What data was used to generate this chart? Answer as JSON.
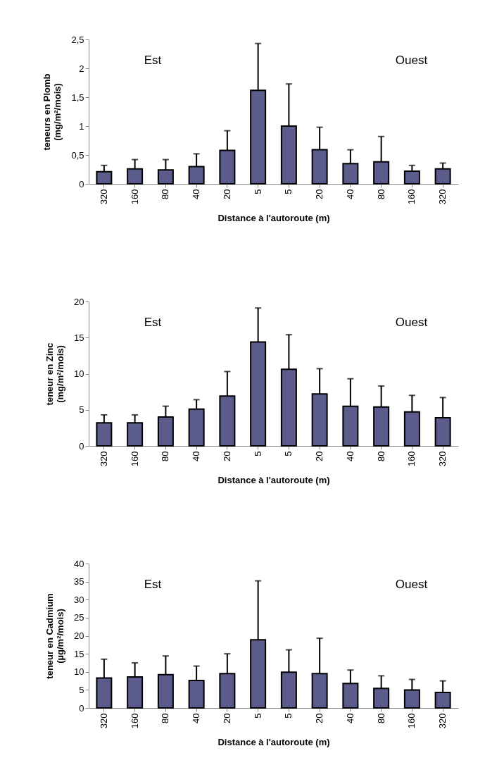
{
  "chart_data": [
    {
      "type": "bar",
      "xlabel": "Distance à l'autoroute (m)",
      "ylabel": "teneurs en Plomb\n(mg/m²/mois)",
      "categories": [
        "320",
        "160",
        "80",
        "40",
        "20",
        "5",
        "5",
        "20",
        "40",
        "80",
        "160",
        "320"
      ],
      "annotations": [
        "Est",
        "Ouest"
      ],
      "series": [
        {
          "color": "#5c5c8c",
          "values": [
            0.21,
            0.26,
            0.24,
            0.3,
            0.58,
            1.62,
            1.0,
            0.59,
            0.35,
            0.38,
            0.22,
            0.26
          ],
          "errors": [
            [
              0.21,
              0.32
            ],
            [
              0.26,
              0.42
            ],
            [
              0.24,
              0.42
            ],
            [
              0.3,
              0.52
            ],
            [
              0.58,
              0.92
            ],
            [
              1.62,
              2.43
            ],
            [
              1.0,
              1.73
            ],
            [
              0.59,
              0.98
            ],
            [
              0.35,
              0.59
            ],
            [
              0.38,
              0.82
            ],
            [
              0.22,
              0.32
            ],
            [
              0.26,
              0.36
            ]
          ]
        }
      ],
      "ylim": [
        0,
        2.5
      ],
      "yticks": [
        0,
        {
          "value": 0.5,
          "label": "0,5"
        },
        1,
        {
          "value": 1.5,
          "label": "1,5"
        },
        2,
        {
          "value": 2.5,
          "label": "2,5"
        }
      ]
    },
    {
      "type": "bar",
      "xlabel": "Distance à l'autoroute (m)",
      "ylabel": "teneur en Zinc\n(mg/m²/mois)",
      "categories": [
        "320",
        "160",
        "80",
        "40",
        "20",
        "5",
        "5",
        "20",
        "40",
        "80",
        "160",
        "320"
      ],
      "annotations": [
        "Est",
        "Ouest"
      ],
      "series": [
        {
          "color": "#5c5c8c",
          "values": [
            3.2,
            3.2,
            4.0,
            5.1,
            6.9,
            14.4,
            10.6,
            7.2,
            5.5,
            5.4,
            4.7,
            3.9
          ],
          "errors": [
            [
              3.2,
              4.3
            ],
            [
              3.2,
              4.3
            ],
            [
              4.0,
              5.5
            ],
            [
              5.1,
              6.4
            ],
            [
              6.9,
              10.3
            ],
            [
              14.4,
              19.1
            ],
            [
              10.6,
              15.4
            ],
            [
              7.2,
              10.7
            ],
            [
              5.5,
              9.3
            ],
            [
              5.4,
              8.3
            ],
            [
              4.7,
              7.0
            ],
            [
              3.9,
              6.7
            ]
          ]
        }
      ],
      "ylim": [
        0,
        20
      ],
      "yticks": [
        0,
        5,
        10,
        15,
        20
      ]
    },
    {
      "type": "bar",
      "xlabel": "Distance à l'autoroute (m)",
      "ylabel": "teneur en Cadmium\n(µg/m²/mois)",
      "categories": [
        "320",
        "160",
        "80",
        "40",
        "20",
        "5",
        "5",
        "20",
        "40",
        "80",
        "160",
        "320"
      ],
      "annotations": [
        "Est",
        "Ouest"
      ],
      "series": [
        {
          "color": "#5c5c8c",
          "values": [
            8.3,
            8.6,
            9.2,
            7.6,
            9.5,
            18.9,
            9.9,
            9.5,
            6.8,
            5.4,
            5.0,
            4.3
          ],
          "errors": [
            [
              8.3,
              13.5
            ],
            [
              8.6,
              12.5
            ],
            [
              9.2,
              14.4
            ],
            [
              7.6,
              11.6
            ],
            [
              9.5,
              15.0
            ],
            [
              18.9,
              35.2
            ],
            [
              9.9,
              16.1
            ],
            [
              9.5,
              19.3
            ],
            [
              6.8,
              10.5
            ],
            [
              5.4,
              8.9
            ],
            [
              5.0,
              7.9
            ],
            [
              4.3,
              7.5
            ]
          ]
        }
      ],
      "ylim": [
        0,
        40
      ],
      "yticks": [
        0,
        5,
        10,
        15,
        20,
        25,
        30,
        35,
        40
      ]
    }
  ]
}
